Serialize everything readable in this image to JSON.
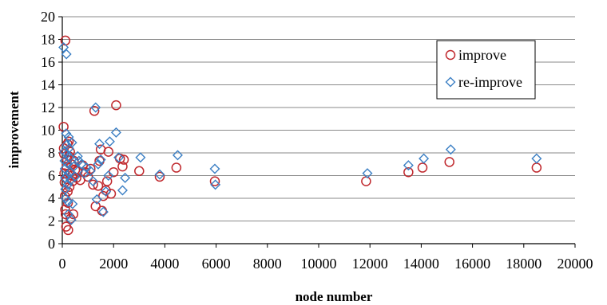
{
  "chart_data": {
    "type": "scatter",
    "title": "",
    "xlabel": "node number",
    "ylabel": "improvement",
    "xlim": [
      0,
      20000
    ],
    "ylim": [
      0,
      20
    ],
    "xticks": [
      0,
      2000,
      4000,
      6000,
      8000,
      10000,
      12000,
      14000,
      16000,
      18000,
      20000
    ],
    "yticks": [
      0,
      2,
      4,
      6,
      8,
      10,
      12,
      14,
      16,
      18,
      20
    ],
    "xtick_labels": [
      "0",
      "2000",
      "4000",
      "6000",
      "8000",
      "10000",
      "12000",
      "14000",
      "16000",
      "18000",
      "20000"
    ],
    "ytick_labels": [
      "0",
      "2",
      "4",
      "6",
      "8",
      "10",
      "12",
      "14",
      "16",
      "18",
      "20"
    ],
    "grid": "horizontal",
    "legend_position": "top-right",
    "series": [
      {
        "name": "improve",
        "marker": "circle",
        "color": "#c0282d",
        "points": [
          [
            50,
            10.3
          ],
          [
            60,
            8.4
          ],
          [
            70,
            7.9
          ],
          [
            80,
            6.2
          ],
          [
            90,
            5.4
          ],
          [
            100,
            4.2
          ],
          [
            110,
            3.0
          ],
          [
            120,
            17.9
          ],
          [
            130,
            2.6
          ],
          [
            150,
            1.5
          ],
          [
            170,
            6.8
          ],
          [
            180,
            5.7
          ],
          [
            190,
            7.4
          ],
          [
            200,
            8.8
          ],
          [
            210,
            4.6
          ],
          [
            220,
            3.6
          ],
          [
            230,
            1.2
          ],
          [
            250,
            9.0
          ],
          [
            260,
            7.7
          ],
          [
            270,
            6.2
          ],
          [
            280,
            5.0
          ],
          [
            300,
            8.1
          ],
          [
            320,
            2.2
          ],
          [
            350,
            7.0
          ],
          [
            380,
            6.0
          ],
          [
            400,
            5.5
          ],
          [
            430,
            2.6
          ],
          [
            450,
            7.3
          ],
          [
            500,
            6.5
          ],
          [
            550,
            5.8
          ],
          [
            600,
            6.4
          ],
          [
            700,
            5.6
          ],
          [
            800,
            6.9
          ],
          [
            900,
            6.3
          ],
          [
            1000,
            5.9
          ],
          [
            1100,
            6.6
          ],
          [
            1200,
            5.2
          ],
          [
            1250,
            11.7
          ],
          [
            1300,
            3.3
          ],
          [
            1400,
            5.1
          ],
          [
            1450,
            7.3
          ],
          [
            1500,
            8.3
          ],
          [
            1550,
            2.9
          ],
          [
            1600,
            4.2
          ],
          [
            1700,
            4.7
          ],
          [
            1750,
            5.5
          ],
          [
            1800,
            8.1
          ],
          [
            1900,
            4.4
          ],
          [
            2000,
            6.3
          ],
          [
            2100,
            12.2
          ],
          [
            2250,
            7.5
          ],
          [
            2350,
            6.8
          ],
          [
            2400,
            7.4
          ],
          [
            3000,
            6.4
          ],
          [
            3800,
            5.9
          ],
          [
            4450,
            6.7
          ],
          [
            5950,
            5.5
          ],
          [
            11850,
            5.5
          ],
          [
            13500,
            6.3
          ],
          [
            14050,
            6.7
          ],
          [
            15100,
            7.2
          ],
          [
            18500,
            6.7
          ]
        ]
      },
      {
        "name": "re-improve",
        "marker": "diamond",
        "color": "#3b7fc4",
        "points": [
          [
            50,
            17.3
          ],
          [
            80,
            8.1
          ],
          [
            90,
            7.3
          ],
          [
            100,
            6.6
          ],
          [
            110,
            5.8
          ],
          [
            120,
            4.8
          ],
          [
            130,
            4.0
          ],
          [
            150,
            9.7
          ],
          [
            160,
            16.7
          ],
          [
            170,
            8.7
          ],
          [
            180,
            7.9
          ],
          [
            190,
            7.1
          ],
          [
            200,
            6.0
          ],
          [
            210,
            5.2
          ],
          [
            220,
            3.7
          ],
          [
            230,
            2.6
          ],
          [
            250,
            9.4
          ],
          [
            260,
            8.4
          ],
          [
            280,
            7.6
          ],
          [
            300,
            6.3
          ],
          [
            320,
            5.6
          ],
          [
            350,
            2.1
          ],
          [
            380,
            8.9
          ],
          [
            400,
            3.5
          ],
          [
            450,
            6.8
          ],
          [
            500,
            5.9
          ],
          [
            600,
            7.7
          ],
          [
            650,
            7.3
          ],
          [
            750,
            7.0
          ],
          [
            850,
            6.2
          ],
          [
            950,
            6.7
          ],
          [
            1100,
            6.4
          ],
          [
            1200,
            5.5
          ],
          [
            1300,
            12.0
          ],
          [
            1350,
            3.9
          ],
          [
            1400,
            7.0
          ],
          [
            1450,
            8.8
          ],
          [
            1500,
            7.4
          ],
          [
            1600,
            2.8
          ],
          [
            1700,
            4.6
          ],
          [
            1800,
            6.0
          ],
          [
            1850,
            9.0
          ],
          [
            2100,
            9.8
          ],
          [
            2200,
            7.6
          ],
          [
            2350,
            4.7
          ],
          [
            2450,
            5.8
          ],
          [
            3050,
            7.6
          ],
          [
            3800,
            6.1
          ],
          [
            4500,
            7.8
          ],
          [
            5950,
            6.6
          ],
          [
            5970,
            5.2
          ],
          [
            11900,
            6.2
          ],
          [
            13500,
            6.9
          ],
          [
            14100,
            7.5
          ],
          [
            15150,
            8.3
          ],
          [
            18500,
            7.5
          ]
        ]
      }
    ]
  }
}
